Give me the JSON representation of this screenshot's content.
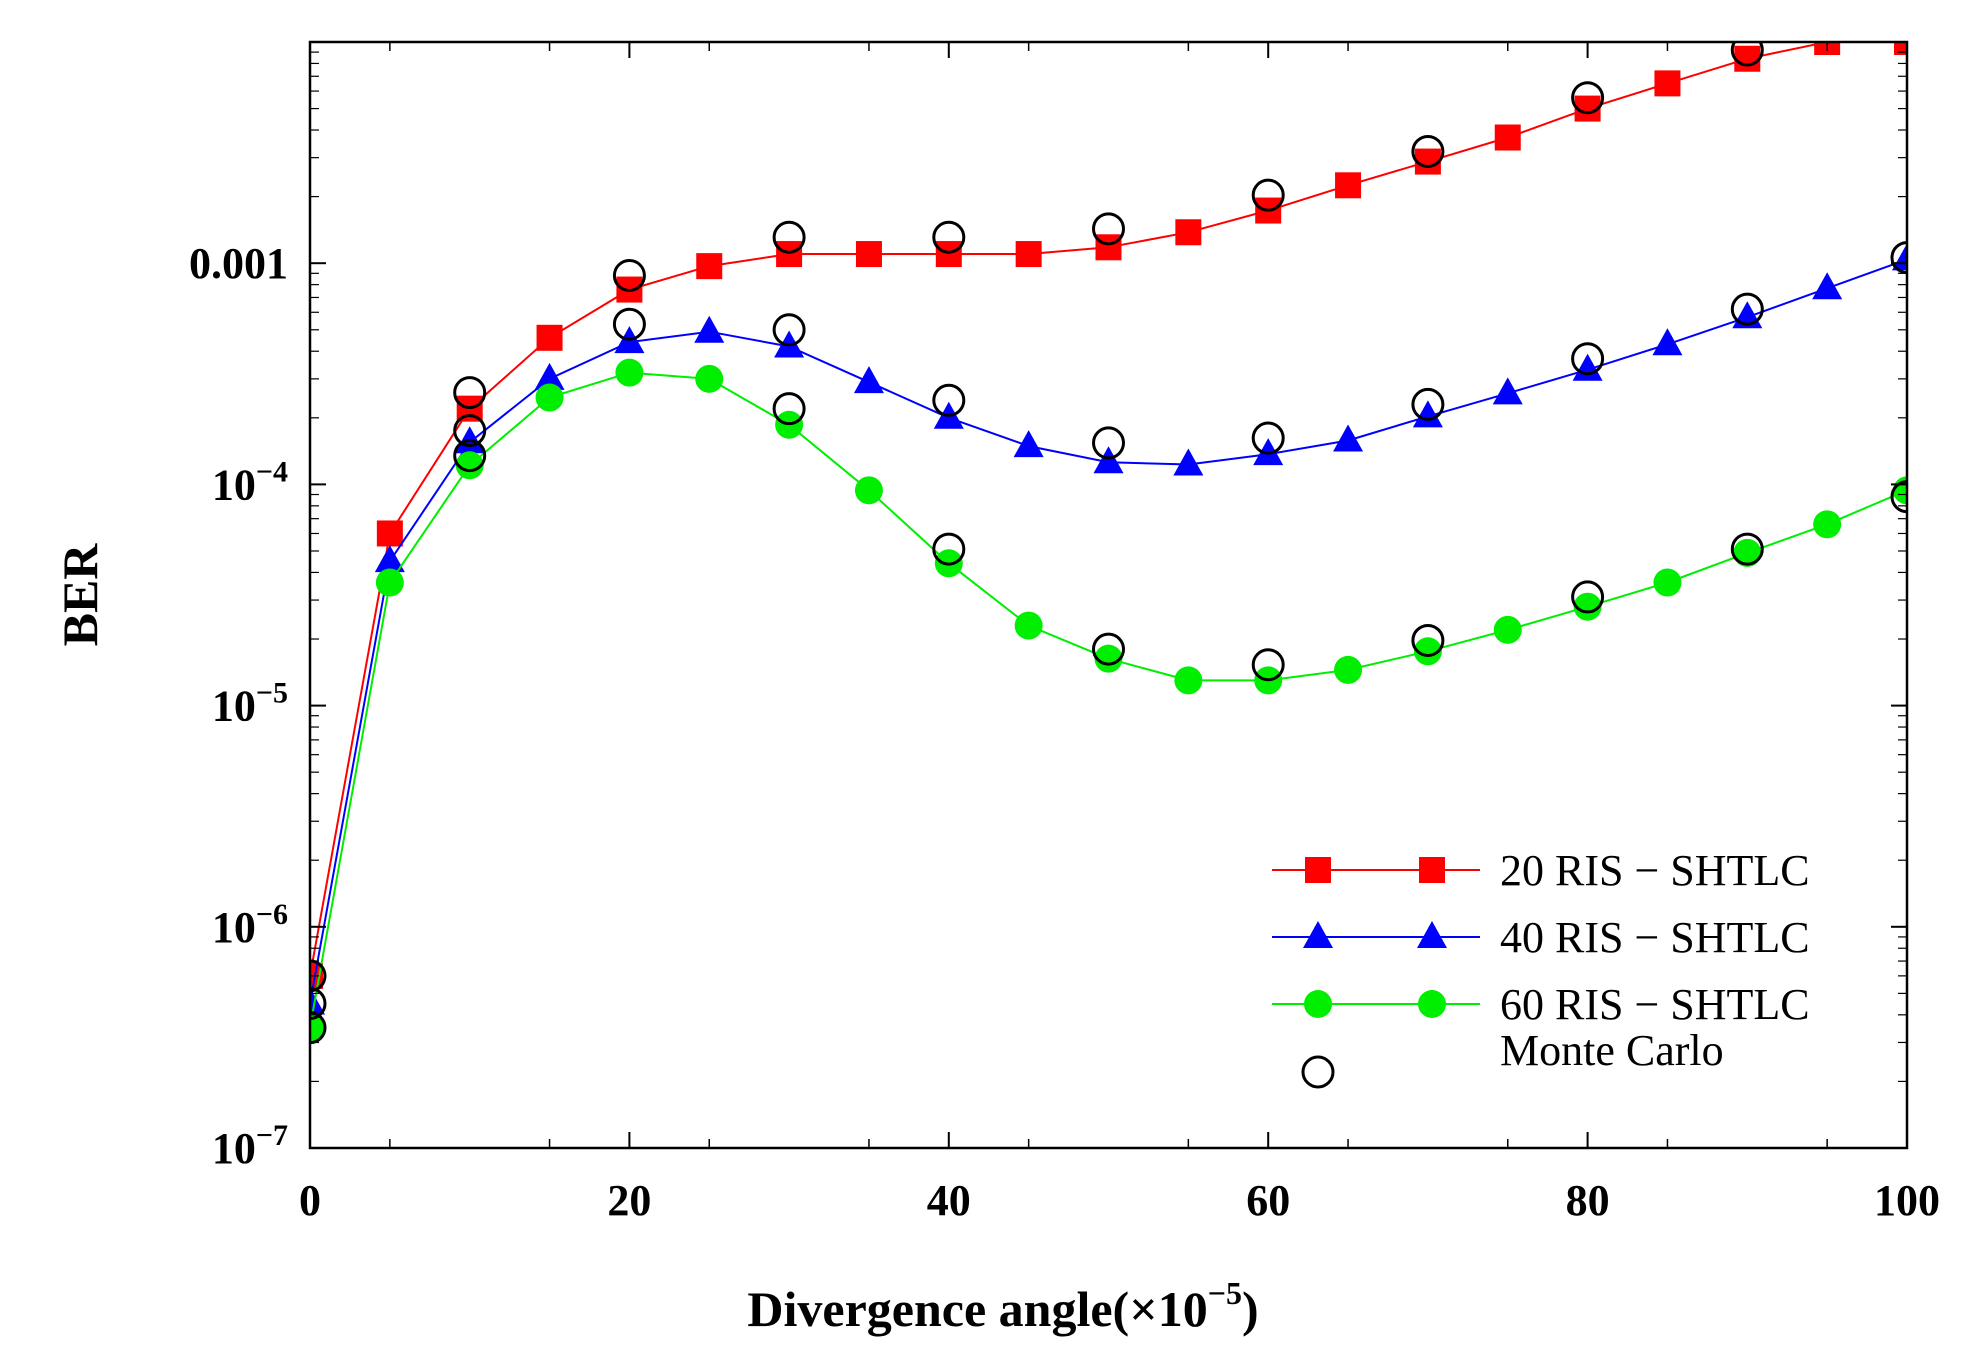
{
  "chart_data": {
    "type": "line",
    "title": "",
    "xlabel": "Divergence angle(×10",
    "xlabel_sup": "−5",
    "xlabel_suffix": ")",
    "ylabel": "BER",
    "yscale": "log",
    "xlim": [
      0,
      100
    ],
    "ylim": [
      1e-07,
      0.01
    ],
    "x_ticks": [
      {
        "value": 0,
        "label": "0"
      },
      {
        "value": 20,
        "label": "20"
      },
      {
        "value": 40,
        "label": "40"
      },
      {
        "value": 60,
        "label": "60"
      },
      {
        "value": 80,
        "label": "80"
      },
      {
        "value": 100,
        "label": "100"
      }
    ],
    "y_ticks": [
      {
        "value": 1e-07,
        "base": "10",
        "exp": "−7"
      },
      {
        "value": 1e-06,
        "base": "10",
        "exp": "−6"
      },
      {
        "value": 1e-05,
        "base": "10",
        "exp": "−5"
      },
      {
        "value": 0.0001,
        "base": "10",
        "exp": "−4"
      },
      {
        "value": 0.001,
        "plain": "0.001"
      }
    ],
    "legend_position": "bottom-right",
    "series": [
      {
        "name": "20 RIS − SHTLC",
        "color": "#ff0000",
        "marker": "square",
        "x": [
          0,
          5,
          10,
          15,
          20,
          25,
          30,
          35,
          40,
          45,
          50,
          55,
          60,
          65,
          70,
          75,
          80,
          85,
          90,
          95,
          100
        ],
        "values": [
          6e-07,
          6e-05,
          0.00022,
          0.00046,
          0.00076,
          0.00097,
          0.0011,
          0.0011,
          0.0011,
          0.0011,
          0.00118,
          0.00138,
          0.00173,
          0.00225,
          0.00288,
          0.0037,
          0.005,
          0.0065,
          0.0084,
          0.01,
          0.01
        ]
      },
      {
        "name": "40 RIS − SHTLC",
        "color": "#0000ff",
        "marker": "triangle",
        "x": [
          0,
          5,
          10,
          15,
          20,
          25,
          30,
          35,
          40,
          45,
          50,
          55,
          60,
          65,
          70,
          75,
          80,
          85,
          90,
          95,
          100
        ],
        "values": [
          4.5e-07,
          4.5e-05,
          0.000155,
          0.0003,
          0.00044,
          0.00049,
          0.00042,
          0.00029,
          0.0002,
          0.000149,
          0.000126,
          0.000123,
          0.000137,
          0.000158,
          0.000203,
          0.000258,
          0.00033,
          0.00043,
          0.00057,
          0.00077,
          0.00104
        ]
      },
      {
        "name": "60 RIS − SHTLC",
        "color": "#00ee00",
        "marker": "circle",
        "x": [
          0,
          5,
          10,
          15,
          20,
          25,
          30,
          35,
          40,
          45,
          50,
          55,
          60,
          65,
          70,
          75,
          80,
          85,
          90,
          95,
          100
        ],
        "values": [
          3.5e-07,
          3.6e-05,
          0.000122,
          0.000247,
          0.00032,
          0.0003,
          0.000186,
          9.4e-05,
          4.4e-05,
          2.3e-05,
          1.63e-05,
          1.3e-05,
          1.3e-05,
          1.45e-05,
          1.76e-05,
          2.2e-05,
          2.8e-05,
          3.6e-05,
          4.9e-05,
          6.6e-05,
          9.4e-05
        ]
      },
      {
        "name": "Monte Carlo",
        "color": "#000000",
        "marker": "open-circle",
        "points": [
          [
            0,
            6e-07
          ],
          [
            0,
            4.5e-07
          ],
          [
            0,
            3.5e-07
          ],
          [
            10,
            0.00026
          ],
          [
            10,
            0.000175
          ],
          [
            10,
            0.000135
          ],
          [
            20,
            0.00088
          ],
          [
            20,
            0.00053
          ],
          [
            30,
            0.00131
          ],
          [
            30,
            0.0005
          ],
          [
            30,
            0.00022
          ],
          [
            40,
            0.00131
          ],
          [
            40,
            0.00024
          ],
          [
            40,
            5.1e-05
          ],
          [
            50,
            0.00143
          ],
          [
            50,
            0.000154
          ],
          [
            50,
            1.8e-05
          ],
          [
            60,
            0.00203
          ],
          [
            60,
            0.000162
          ],
          [
            60,
            1.53e-05
          ],
          [
            70,
            0.0032
          ],
          [
            70,
            0.00023
          ],
          [
            70,
            1.97e-05
          ],
          [
            80,
            0.0056
          ],
          [
            80,
            0.00037
          ],
          [
            80,
            3.1e-05
          ],
          [
            90,
            0.0092
          ],
          [
            90,
            0.00062
          ],
          [
            90,
            5.1e-05
          ],
          [
            100,
            0.00106
          ],
          [
            100,
            8.8e-05
          ]
        ]
      }
    ]
  }
}
